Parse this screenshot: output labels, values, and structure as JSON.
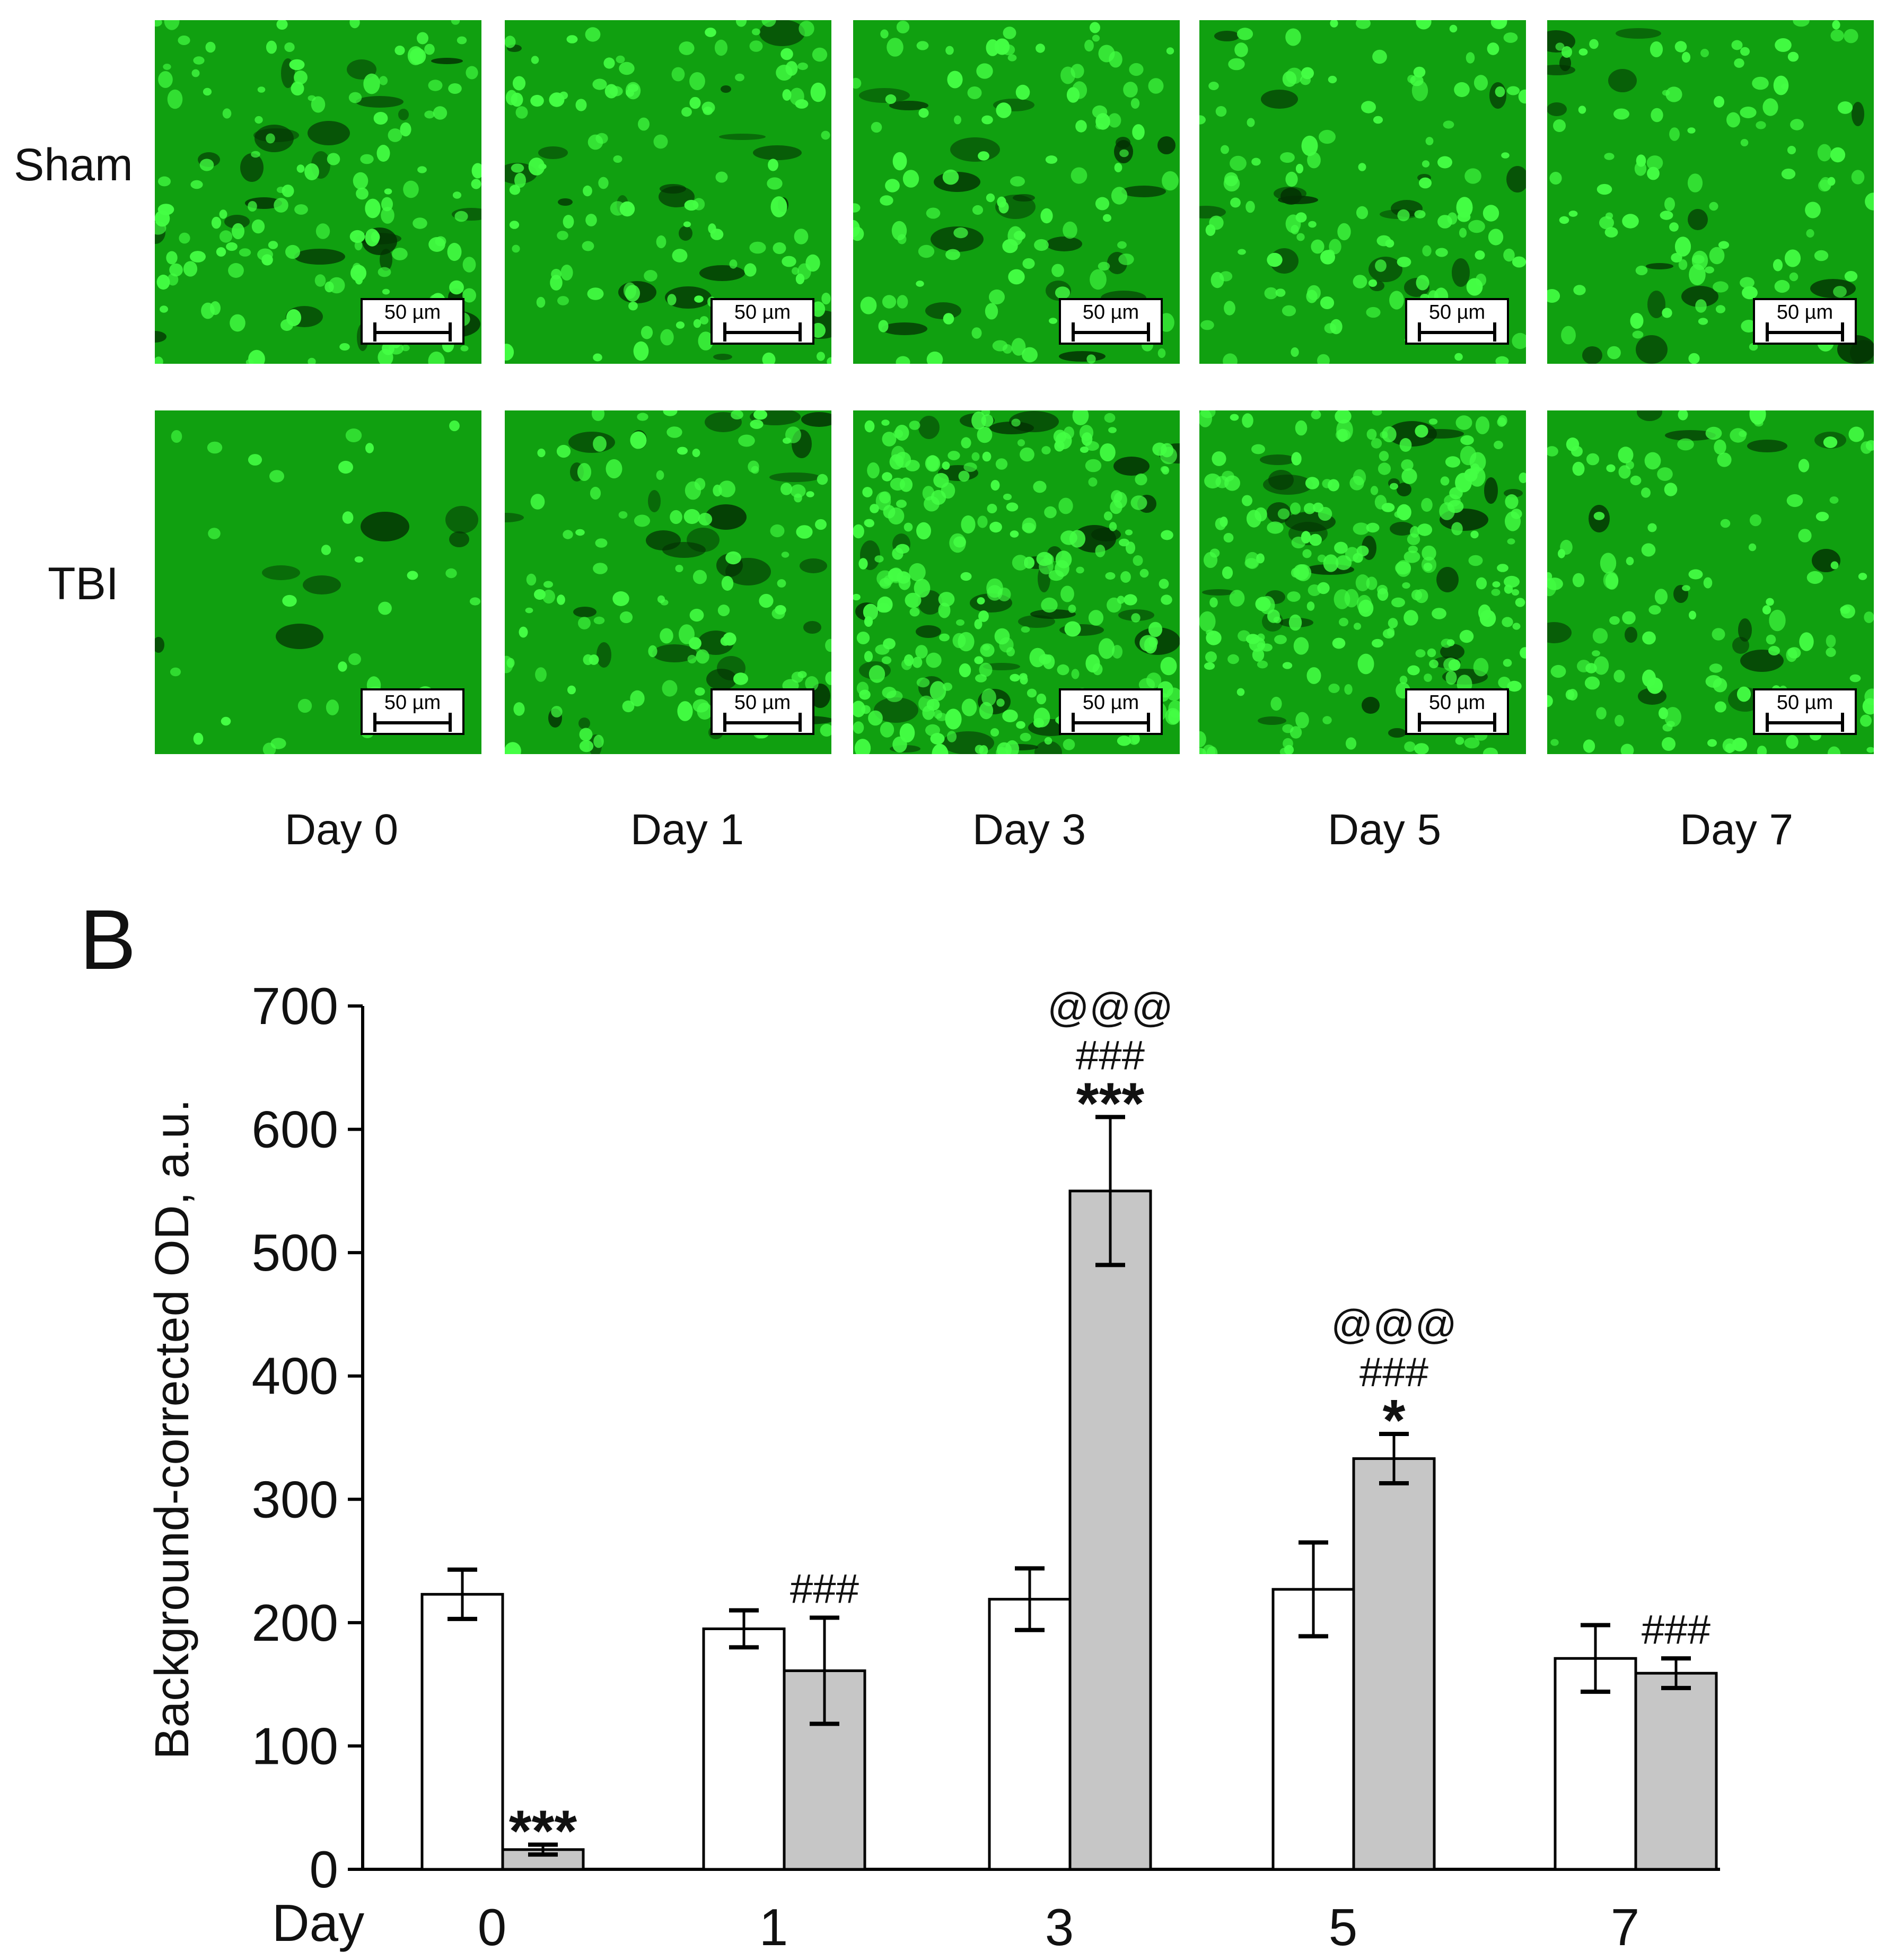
{
  "panel_a": {
    "row_labels": [
      "Sham",
      "TBI"
    ],
    "column_labels": [
      "Day 0",
      "Day 1",
      "Day 3",
      "Day 5",
      "Day 7"
    ],
    "scale_bar_label": "50 µm",
    "image_colors": {
      "background": "#10a010",
      "cell": "#44ff44",
      "dark": "#033003"
    }
  },
  "panel_b": {
    "letter": "B"
  },
  "chart_data": {
    "type": "bar",
    "title": "",
    "xlabel": "Day",
    "ylabel": "Background-corrected OD, a.u.",
    "categories": [
      "0",
      "1",
      "3",
      "5",
      "7"
    ],
    "ylim": [
      0,
      700
    ],
    "yticks": [
      "0",
      "100",
      "200",
      "300",
      "400",
      "500",
      "600",
      "700"
    ],
    "series": [
      {
        "fill": "#ffffff",
        "values": [
          223,
          195,
          219,
          227,
          171
        ],
        "errors": [
          20,
          15,
          25,
          38,
          27
        ]
      },
      {
        "fill": "#c6c6c6",
        "values": [
          16,
          161,
          550,
          333,
          159
        ],
        "errors": [
          4,
          43,
          60,
          20,
          12
        ]
      }
    ],
    "annotations": [
      {
        "category": "0",
        "series": 1,
        "lines": [
          "***"
        ]
      },
      {
        "category": "1",
        "series": 1,
        "lines": [
          "###"
        ]
      },
      {
        "category": "3",
        "series": 1,
        "lines": [
          "@@@",
          "###",
          "***"
        ]
      },
      {
        "category": "5",
        "series": 1,
        "lines": [
          "@@@",
          "###",
          "*"
        ]
      },
      {
        "category": "7",
        "series": 1,
        "lines": [
          "###"
        ]
      }
    ],
    "grid": false,
    "legend": "none"
  }
}
